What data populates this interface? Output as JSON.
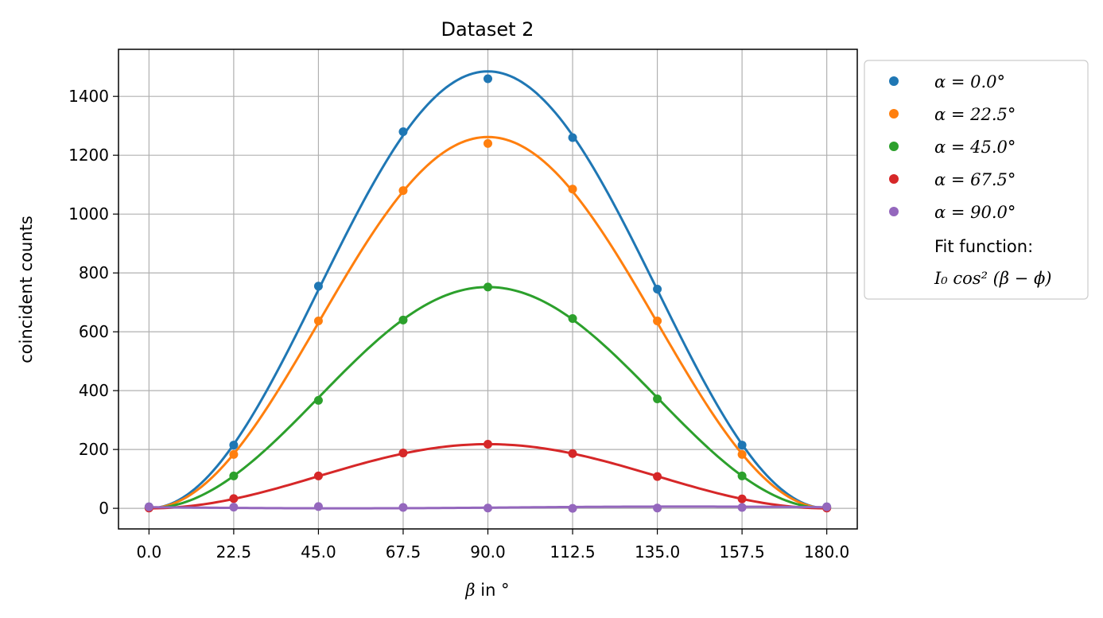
{
  "chart_data": {
    "type": "scatter",
    "title": "Dataset 2",
    "xlabel_symbol": "β",
    "xlabel_text": " in °",
    "ylabel": "coincident counts",
    "xlim": [
      -8.1,
      188.1
    ],
    "ylim": [
      -70,
      1560
    ],
    "xticks": [
      "0.0",
      "22.5",
      "45.0",
      "67.5",
      "90.0",
      "112.5",
      "135.0",
      "157.5",
      "180.0"
    ],
    "yticks": [
      "0",
      "200",
      "400",
      "600",
      "800",
      "1000",
      "1200",
      "1400"
    ],
    "grid": true,
    "legend_position": "outside-right",
    "x": [
      0,
      22.5,
      45,
      67.5,
      90,
      112.5,
      135,
      157.5,
      180
    ],
    "series": [
      {
        "name": "α = 0.0°",
        "color": "#1f77b4",
        "values": [
          5,
          215,
          755,
          1280,
          1460,
          1260,
          745,
          215,
          5
        ],
        "fit": {
          "I0": 1485,
          "phi": 0
        }
      },
      {
        "name": "α = 22.5°",
        "color": "#ff7f0e",
        "values": [
          3,
          183,
          637,
          1080,
          1240,
          1085,
          637,
          183,
          3
        ],
        "fit": {
          "I0": 1262,
          "phi": 0
        }
      },
      {
        "name": "α = 45.0°",
        "color": "#2ca02c",
        "values": [
          2,
          110,
          367,
          640,
          752,
          645,
          372,
          110,
          2
        ],
        "fit": {
          "I0": 752,
          "phi": 0
        }
      },
      {
        "name": "α = 67.5°",
        "color": "#d62728",
        "values": [
          1,
          33,
          110,
          188,
          218,
          186,
          108,
          32,
          1
        ],
        "fit": {
          "I0": 218,
          "phi": 0
        }
      },
      {
        "name": "α = 90.0°",
        "color": "#9467bd",
        "values": [
          5,
          4,
          6,
          3,
          1,
          0,
          1,
          3,
          5
        ],
        "fit": {
          "I0": 6,
          "phi": 52
        }
      }
    ],
    "legend_extra": [
      "Fit function:",
      "I₀ cos² (β − ϕ)"
    ]
  }
}
